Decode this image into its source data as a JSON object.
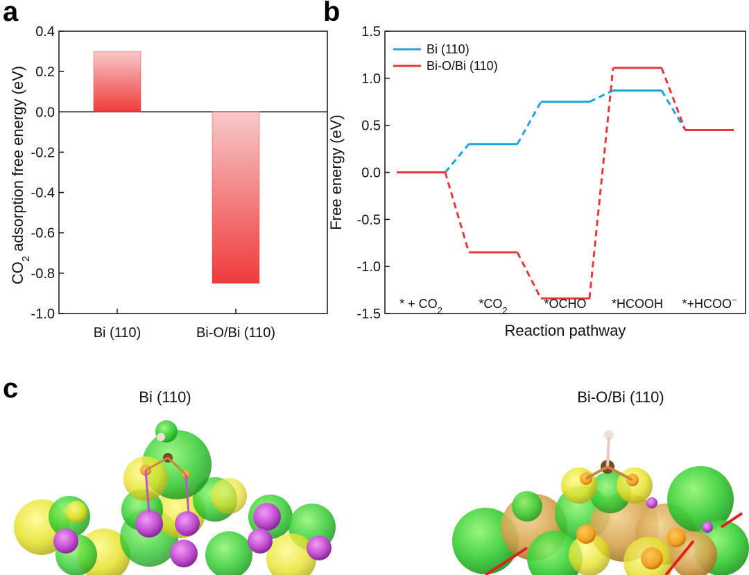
{
  "panels": {
    "a": {
      "letter": "a"
    },
    "b": {
      "letter": "b"
    },
    "c": {
      "letter": "c",
      "titles": [
        "Bi (110)",
        "Bi-O/Bi (110)"
      ]
    }
  },
  "chart_data": [
    {
      "type": "bar",
      "categories": [
        "Bi (110)",
        "Bi-O/Bi (110)"
      ],
      "values": [
        0.3,
        -0.85
      ],
      "ylabel_main": "CO",
      "ylabel_sub": "2",
      "ylabel_rest": " adsorption free energy (eV)",
      "ylim": [
        -1.0,
        0.4
      ],
      "yticks": [
        "0.4",
        "0.2",
        "0.0",
        "-0.2",
        "-0.4",
        "-0.6",
        "-0.8",
        "-1.0"
      ],
      "ytick_values": [
        0.4,
        0.2,
        0.0,
        -0.2,
        -0.4,
        -0.6,
        -0.8,
        -1.0
      ],
      "bar_color": "#ee3b3b",
      "bar_color_light": "#f8c8c8",
      "zero_line": true
    },
    {
      "type": "line",
      "xlabel": "Reaction pathway",
      "ylabel": "Free energy (eV)",
      "ylim": [
        -1.5,
        1.5
      ],
      "yticks": [
        "1.5",
        "1.0",
        "0.5",
        "0.0",
        "-0.5",
        "-1.0",
        "-1.5"
      ],
      "ytick_values": [
        1.5,
        1.0,
        0.5,
        0.0,
        -0.5,
        -1.0,
        -1.5
      ],
      "steps": [
        {
          "main": "* + CO",
          "sub": "2",
          "sup": ""
        },
        {
          "main": "*CO",
          "sub": "2",
          "sup": ""
        },
        {
          "main": "*OCHO",
          "sub": "",
          "sup": ""
        },
        {
          "main": "*HCOOH",
          "sub": "",
          "sup": ""
        },
        {
          "main": "*+HCOO",
          "sub": "",
          "sup": "−"
        }
      ],
      "legend_position": "top-left",
      "series": [
        {
          "name": "Bi (110)",
          "color": "#1fa3e0",
          "values": [
            0.0,
            0.3,
            0.75,
            0.87,
            0.45
          ]
        },
        {
          "name": "Bi-O/Bi (110)",
          "color": "#e8383d",
          "values": [
            0.0,
            -0.85,
            -1.34,
            1.11,
            0.45
          ]
        }
      ]
    }
  ]
}
